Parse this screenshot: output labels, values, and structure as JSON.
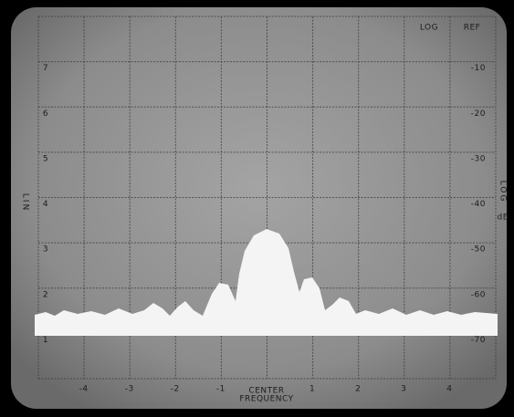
{
  "header": {
    "log": "LOG",
    "ref": "REF"
  },
  "left_axis": {
    "label": "LIN",
    "ticks": [
      "1",
      "2",
      "3",
      "4",
      "5",
      "6",
      "7"
    ]
  },
  "right_axis": {
    "label": "LOG",
    "unit": "dB",
    "ticks": [
      "-70",
      "-60",
      "-50",
      "-40",
      "-30",
      "-20",
      "-10"
    ]
  },
  "bottom_axis": {
    "ticks": [
      "-4",
      "-3",
      "-2",
      "-1",
      "1",
      "2",
      "3",
      "4"
    ],
    "label": [
      "CENTER",
      "FREQUENCY"
    ]
  }
}
